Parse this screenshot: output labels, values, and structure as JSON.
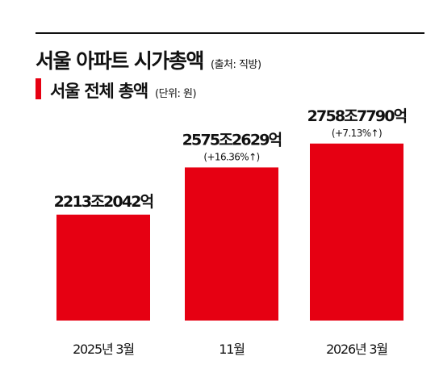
{
  "header": {
    "title": "서울 아파트 시가총액",
    "source": "(출처: 직방)",
    "subtitle": "서울 전체 총액",
    "unit": "(단위: 원)"
  },
  "colors": {
    "bar": "#e60012",
    "text": "#111111"
  },
  "chart_data": {
    "type": "bar",
    "title": "서울 전체 총액",
    "categories": [
      "2025년 3월",
      "11월",
      "2026년 3월"
    ],
    "values": [
      2213.2042,
      2575.2629,
      2758.779
    ],
    "value_labels": [
      "2213조2042억",
      "2575조2629억",
      "2758조7790억"
    ],
    "growth_labels": [
      "",
      "(+16.36%↑)",
      "(+7.13%↑)"
    ],
    "xlabel": "",
    "ylabel": "",
    "ylim": [
      1400,
      2900
    ],
    "grid": false
  }
}
